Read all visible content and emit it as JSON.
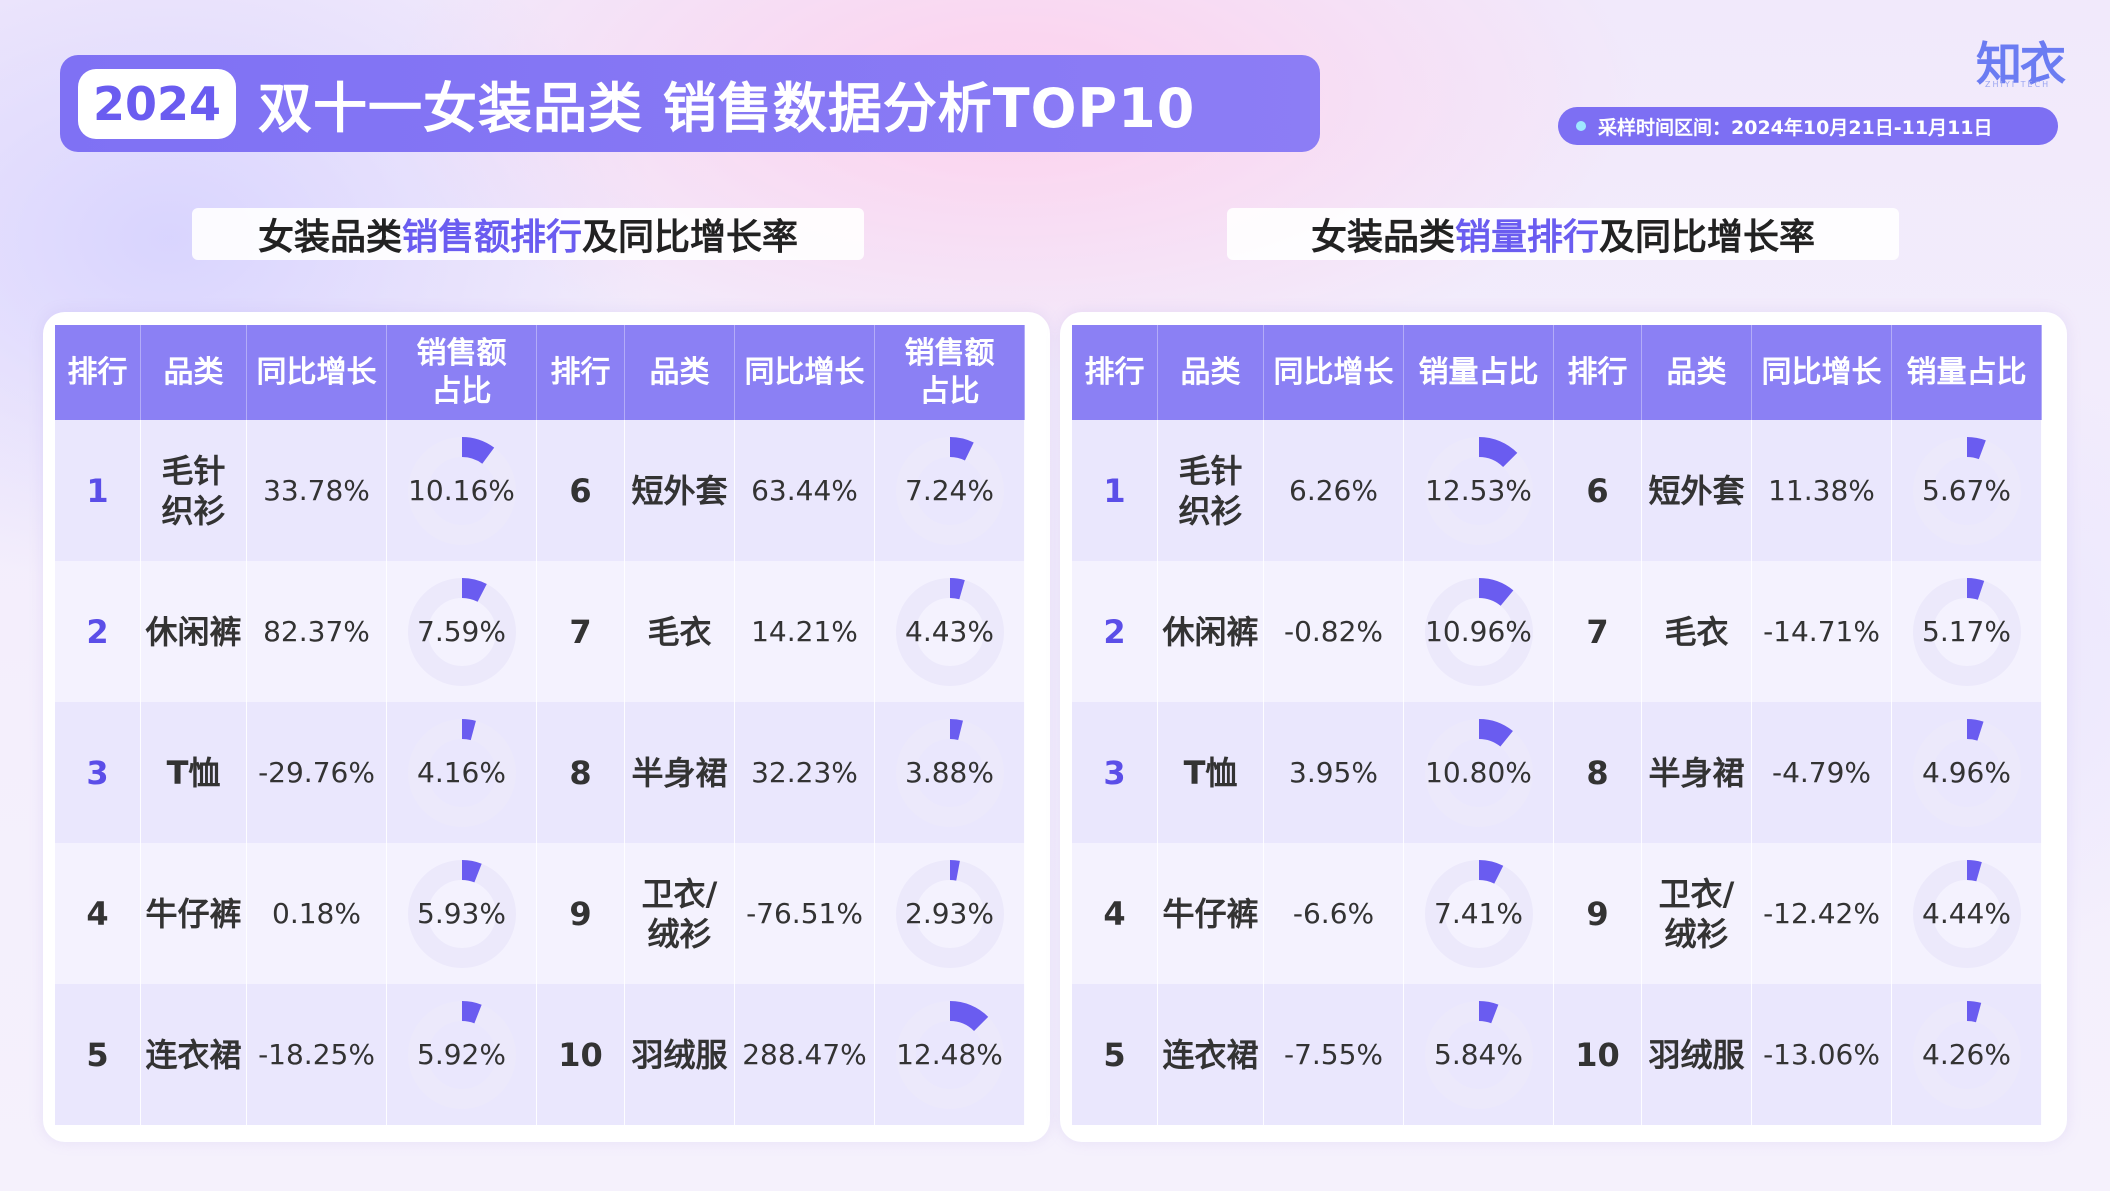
{
  "header": {
    "year": "2024",
    "title": "双十一女装品类 销售数据分析TOP10",
    "logo": "知衣",
    "logo_sub": "ZHIYI TECH",
    "sample_label": "采样时间区间：2024年10月21日-11月11日"
  },
  "left_section": {
    "title_pre": "女装品类",
    "title_hl": "销售额排行",
    "title_post": "及同比增长率",
    "headers": [
      "排行",
      "品类",
      "同比增长",
      "销售额\n占比",
      "排行",
      "品类",
      "同比增长",
      "销售额\n占比"
    ],
    "rows": [
      {
        "rank_a": "1",
        "cat_a": "毛针\n织衫",
        "growth_a": "33.78%",
        "share_a": "10.16%",
        "share_a_value": 10.16,
        "rank_b": "6",
        "cat_b": "短外套",
        "growth_b": "63.44%",
        "share_b": "7.24%",
        "share_b_value": 7.24
      },
      {
        "rank_a": "2",
        "cat_a": "休闲裤",
        "growth_a": "82.37%",
        "share_a": "7.59%",
        "share_a_value": 7.59,
        "rank_b": "7",
        "cat_b": "毛衣",
        "growth_b": "14.21%",
        "share_b": "4.43%",
        "share_b_value": 4.43
      },
      {
        "rank_a": "3",
        "cat_a": "T恤",
        "growth_a": "-29.76%",
        "share_a": "4.16%",
        "share_a_value": 4.16,
        "rank_b": "8",
        "cat_b": "半身裙",
        "growth_b": "32.23%",
        "share_b": "3.88%",
        "share_b_value": 3.88
      },
      {
        "rank_a": "4",
        "cat_a": "牛仔裤",
        "growth_a": "0.18%",
        "share_a": "5.93%",
        "share_a_value": 5.93,
        "rank_b": "9",
        "cat_b": "卫衣/\n绒衫",
        "growth_b": "-76.51%",
        "share_b": "2.93%",
        "share_b_value": 2.93
      },
      {
        "rank_a": "5",
        "cat_a": "连衣裙",
        "growth_a": "-18.25%",
        "share_a": "5.92%",
        "share_a_value": 5.92,
        "rank_b": "10",
        "cat_b": "羽绒服",
        "growth_b": "288.47%",
        "share_b": "12.48%",
        "share_b_value": 12.48
      }
    ]
  },
  "right_section": {
    "title_pre": "女装品类",
    "title_hl": "销量排行",
    "title_post": "及同比增长率",
    "headers": [
      "排行",
      "品类",
      "同比增长",
      "销量占比",
      "排行",
      "品类",
      "同比增长",
      "销量占比"
    ],
    "rows": [
      {
        "rank_a": "1",
        "cat_a": "毛针\n织衫",
        "growth_a": "6.26%",
        "share_a": "12.53%",
        "share_a_value": 12.53,
        "rank_b": "6",
        "cat_b": "短外套",
        "growth_b": "11.38%",
        "share_b": "5.67%",
        "share_b_value": 5.67
      },
      {
        "rank_a": "2",
        "cat_a": "休闲裤",
        "growth_a": "-0.82%",
        "share_a": "10.96%",
        "share_a_value": 10.96,
        "rank_b": "7",
        "cat_b": "毛衣",
        "growth_b": "-14.71%",
        "share_b": "5.17%",
        "share_b_value": 5.17
      },
      {
        "rank_a": "3",
        "cat_a": "T恤",
        "growth_a": "3.95%",
        "share_a": "10.80%",
        "share_a_value": 10.8,
        "rank_b": "8",
        "cat_b": "半身裙",
        "growth_b": "-4.79%",
        "share_b": "4.96%",
        "share_b_value": 4.96
      },
      {
        "rank_a": "4",
        "cat_a": "牛仔裤",
        "growth_a": "-6.6%",
        "share_a": "7.41%",
        "share_a_value": 7.41,
        "rank_b": "9",
        "cat_b": "卫衣/\n绒衫",
        "growth_b": "-12.42%",
        "share_b": "4.44%",
        "share_b_value": 4.44
      },
      {
        "rank_a": "5",
        "cat_a": "连衣裙",
        "growth_a": "-7.55%",
        "share_a": "5.84%",
        "share_a_value": 5.84,
        "rank_b": "10",
        "cat_b": "羽绒服",
        "growth_b": "-13.06%",
        "share_b": "4.26%",
        "share_b_value": 4.26
      }
    ]
  },
  "colors": {
    "accent": "#7f71f4",
    "header_bg": "#8b80f4",
    "donut_fill": "#6a5cf0",
    "donut_track": "#ece9fb",
    "rank_highlight": "#5b4ee8"
  }
}
